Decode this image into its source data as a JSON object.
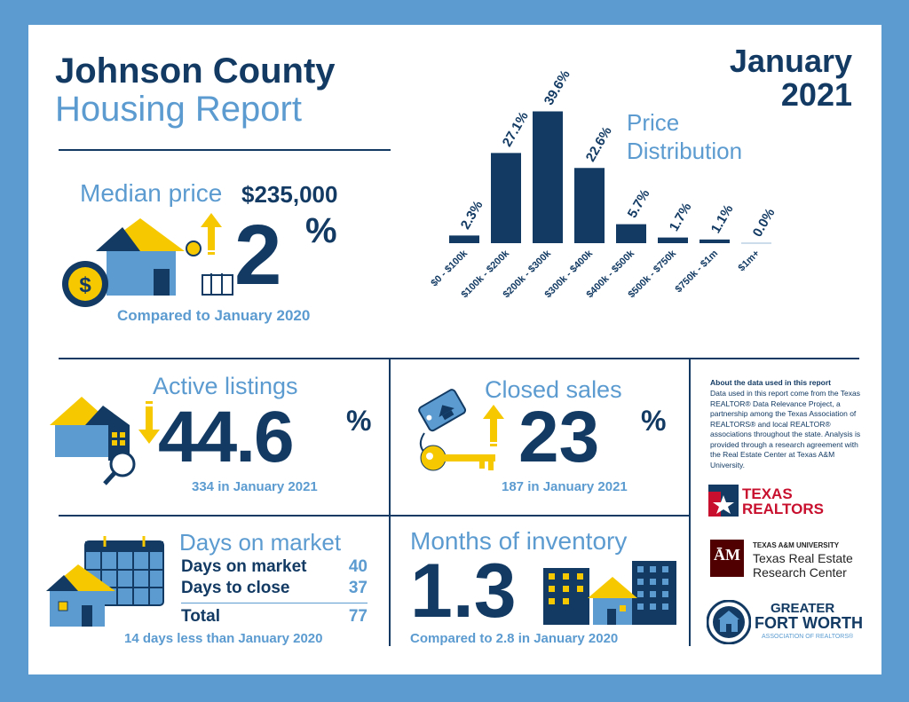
{
  "header": {
    "title_line1": "Johnson County",
    "title_line2": "Housing Report",
    "date_month": "January",
    "date_year": "2021"
  },
  "median": {
    "label": "Median price",
    "price": "$235,000",
    "change_value": "2",
    "percent_sign": "%",
    "comparison": "Compared to January 2020"
  },
  "price_distribution": {
    "title_line1": "Price",
    "title_line2": "Distribution"
  },
  "active": {
    "label": "Active listings",
    "value": "44.6",
    "percent_sign": "%",
    "sub": "334 in January 2021"
  },
  "closed": {
    "label": "Closed sales",
    "value": "23",
    "percent_sign": "%",
    "sub": "187 in January 2021"
  },
  "days": {
    "label": "Days on market",
    "row1_label": "Days on market",
    "row1_value": "40",
    "row2_label": "Days to close",
    "row2_value": "37",
    "total_label": "Total",
    "total_value": "77",
    "sub": "14 days less than January 2020"
  },
  "inventory": {
    "label": "Months of inventory",
    "value": "1.3",
    "sub": "Compared to 2.8 in January 2020"
  },
  "about": {
    "heading": "About the data used in this report",
    "body": "Data used in this report come from the Texas REALTOR® Data Relevance Project, a partnership among the Texas Association of REALTORS® and local REALTOR® associations throughout the state. Analysis is provided through a research agreement with the Real Estate Center at Texas A&M University."
  },
  "logos": {
    "texas_realtors_line1": "TEXAS",
    "texas_realtors_line2": "REALTORS",
    "tamu_line1": "TEXAS A&M UNIVERSITY",
    "tamu_line2": "Texas Real Estate",
    "tamu_line3": "Research Center",
    "gfw_line1": "GREATER",
    "gfw_line2": "FORT WORTH",
    "gfw_line3": "ASSOCIATION OF REALTORS®"
  },
  "colors": {
    "navy": "#123a63",
    "light_blue": "#5b9bd0",
    "yellow": "#f5c800",
    "red": "#c8102e",
    "maroon": "#500000"
  },
  "chart_data": {
    "type": "bar",
    "categories": [
      "$0 - $100k",
      "$100k - $200k",
      "$200k - $300k",
      "$300k - $400k",
      "$400k - $500k",
      "$500k - $750k",
      "$750k - $1m",
      "$1m+"
    ],
    "values": [
      2.3,
      27.1,
      39.6,
      22.6,
      5.7,
      1.7,
      1.1,
      0.0
    ],
    "value_labels": [
      "2.3%",
      "27.1%",
      "39.6%",
      "22.6%",
      "5.7%",
      "1.7%",
      "1.1%",
      "0.0%"
    ],
    "title": "Price Distribution",
    "xlabel": "",
    "ylabel": "",
    "ylim": [
      0,
      40
    ],
    "grid": false
  }
}
